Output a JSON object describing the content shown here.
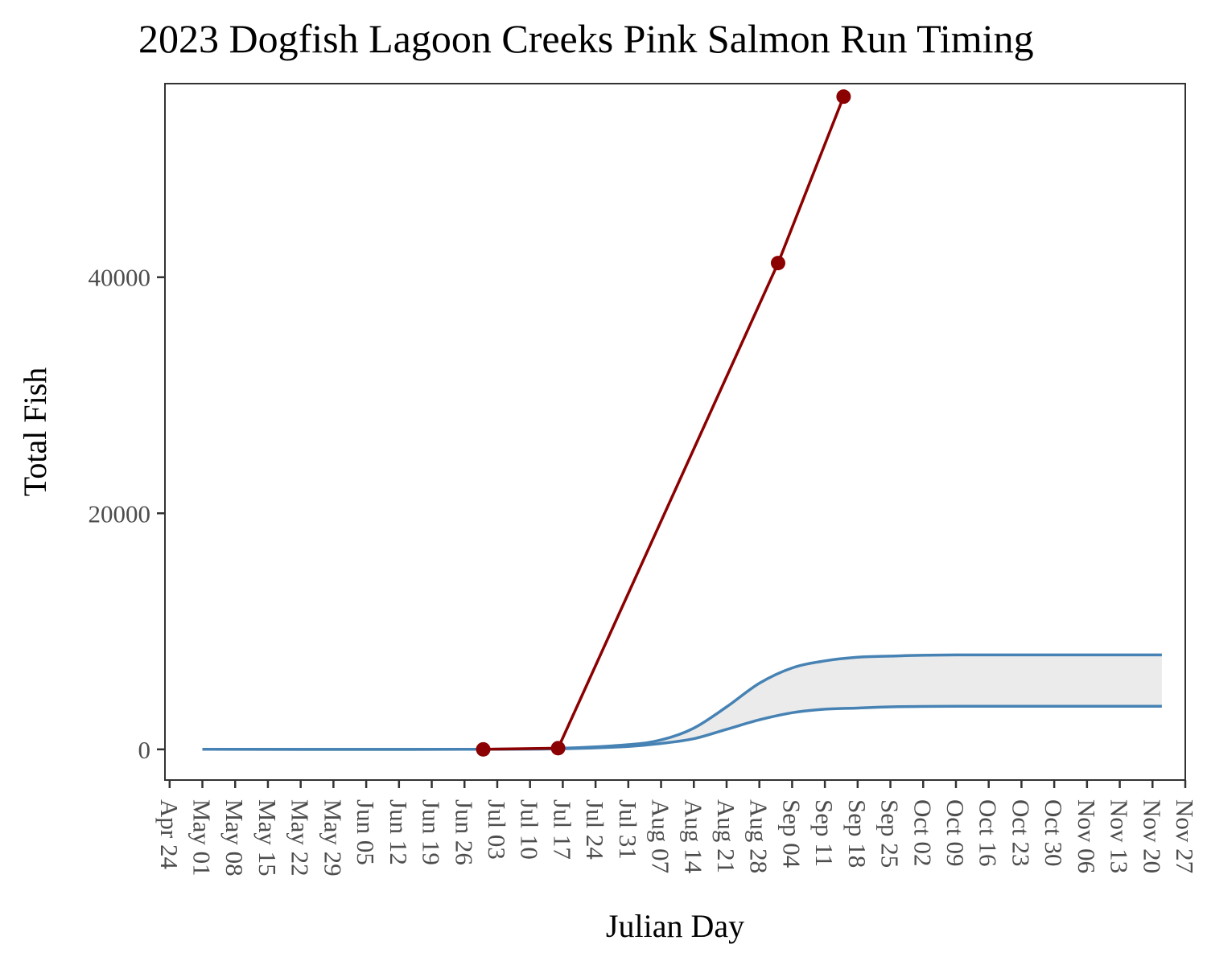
{
  "chart_data": {
    "type": "line",
    "title": "2023 Dogfish Lagoon Creeks Pink Salmon Run Timing",
    "xlabel": "Julian Day",
    "ylabel": "Total Fish",
    "x_tick_labels": [
      "Apr 24",
      "May 01",
      "May 08",
      "May 15",
      "May 22",
      "May 29",
      "Jun 05",
      "Jun 12",
      "Jun 19",
      "Jun 26",
      "Jul 03",
      "Jul 10",
      "Jul 17",
      "Jul 24",
      "Jul 31",
      "Aug 07",
      "Aug 14",
      "Aug 21",
      "Aug 28",
      "Sep 04",
      "Sep 11",
      "Sep 18",
      "Sep 25",
      "Oct 02",
      "Oct 09",
      "Oct 16",
      "Oct 23",
      "Oct 30",
      "Nov 06",
      "Nov 13",
      "Nov 20",
      "Nov 27"
    ],
    "y_ticks": [
      0,
      20000,
      40000
    ],
    "ylim": [
      -2600,
      56400
    ],
    "xlim": [
      "Apr 23",
      "Nov 27"
    ],
    "grid": false,
    "observed": {
      "color": "#8B0000",
      "points": [
        {
          "x": "Jun 30",
          "y": 0
        },
        {
          "x": "Jul 16",
          "y": 100
        },
        {
          "x": "Sep 01",
          "y": 41200
        },
        {
          "x": "Sep 15",
          "y": 55300
        }
      ]
    },
    "expected_band": {
      "line_color": "#4682B4",
      "fill_color": "#EBEBEB",
      "start": "May 01",
      "end": "Nov 22",
      "upper": [
        {
          "x": "May 01",
          "y": 0
        },
        {
          "x": "Jun 26",
          "y": 0
        },
        {
          "x": "Jul 17",
          "y": 100
        },
        {
          "x": "Jul 31",
          "y": 400
        },
        {
          "x": "Aug 07",
          "y": 800
        },
        {
          "x": "Aug 14",
          "y": 1800
        },
        {
          "x": "Aug 21",
          "y": 3600
        },
        {
          "x": "Aug 28",
          "y": 5600
        },
        {
          "x": "Sep 04",
          "y": 6900
        },
        {
          "x": "Sep 11",
          "y": 7500
        },
        {
          "x": "Sep 18",
          "y": 7800
        },
        {
          "x": "Sep 25",
          "y": 7900
        },
        {
          "x": "Oct 09",
          "y": 8000
        },
        {
          "x": "Nov 22",
          "y": 8000
        }
      ],
      "lower": [
        {
          "x": "May 01",
          "y": 0
        },
        {
          "x": "Jun 26",
          "y": 0
        },
        {
          "x": "Jul 17",
          "y": 50
        },
        {
          "x": "Jul 31",
          "y": 250
        },
        {
          "x": "Aug 07",
          "y": 500
        },
        {
          "x": "Aug 14",
          "y": 900
        },
        {
          "x": "Aug 21",
          "y": 1700
        },
        {
          "x": "Aug 28",
          "y": 2500
        },
        {
          "x": "Sep 04",
          "y": 3100
        },
        {
          "x": "Sep 11",
          "y": 3400
        },
        {
          "x": "Sep 18",
          "y": 3500
        },
        {
          "x": "Sep 25",
          "y": 3600
        },
        {
          "x": "Oct 09",
          "y": 3650
        },
        {
          "x": "Nov 22",
          "y": 3650
        }
      ]
    }
  }
}
